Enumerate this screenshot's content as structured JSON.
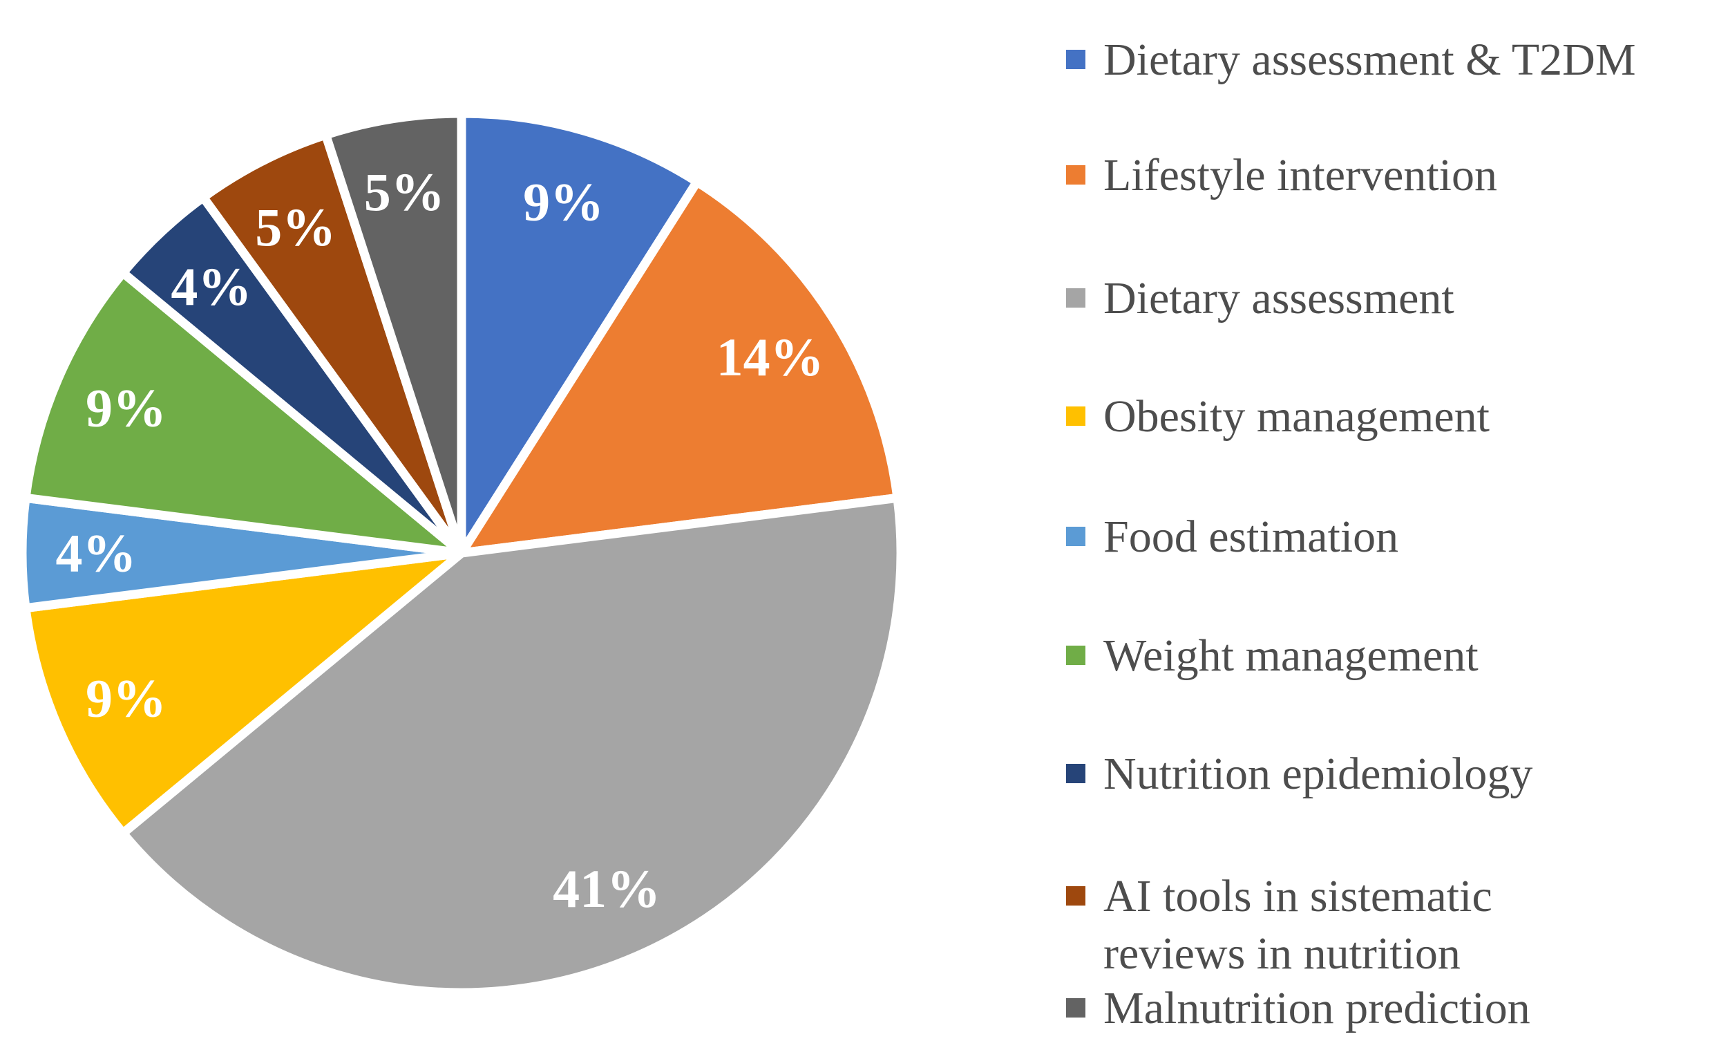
{
  "chart_data": {
    "type": "pie",
    "title": "",
    "legend_position": "right",
    "start_angle_deg": 0,
    "direction": "clockwise",
    "background": "#FFFFFF",
    "slice_border_color": "#FFFFFF",
    "percent_label_color": "#FFFFFF",
    "legend_text_color": "#4D4D4D",
    "slices": [
      {
        "label": "Dietary assessment & T2DM",
        "value_pct": 9,
        "display": "9%",
        "color": "#4472C4",
        "legend_lines": [
          "Dietary assessment & T2DM"
        ]
      },
      {
        "label": "Lifestyle intervention",
        "value_pct": 14,
        "display": "14%",
        "color": "#ED7D31",
        "legend_lines": [
          "Lifestyle intervention"
        ]
      },
      {
        "label": "Dietary assessment",
        "value_pct": 41,
        "display": "41%",
        "color": "#A5A5A5",
        "legend_lines": [
          "Dietary assessment"
        ]
      },
      {
        "label": "Obesity management",
        "value_pct": 9,
        "display": "9%",
        "color": "#FFC000",
        "legend_lines": [
          "Obesity management"
        ]
      },
      {
        "label": "Food estimation",
        "value_pct": 4,
        "display": "4%",
        "color": "#5B9BD5",
        "legend_lines": [
          "Food estimation"
        ]
      },
      {
        "label": "Weight management",
        "value_pct": 9,
        "display": "9%",
        "color": "#70AD47",
        "legend_lines": [
          "Weight management"
        ]
      },
      {
        "label": "Nutrition epidemiology",
        "value_pct": 4,
        "display": "4%",
        "color": "#264478",
        "legend_lines": [
          "Nutrition epidemiology"
        ]
      },
      {
        "label": "AI tools in sistematic reviews in nutrition",
        "value_pct": 5,
        "display": "5%",
        "color": "#9E480E",
        "legend_lines": [
          "AI tools in sistematic",
          "reviews in nutrition"
        ]
      },
      {
        "label": "Malnutrition prediction",
        "value_pct": 5,
        "display": "5%",
        "color": "#636363",
        "legend_lines": [
          "Malnutrition prediction"
        ]
      }
    ]
  }
}
